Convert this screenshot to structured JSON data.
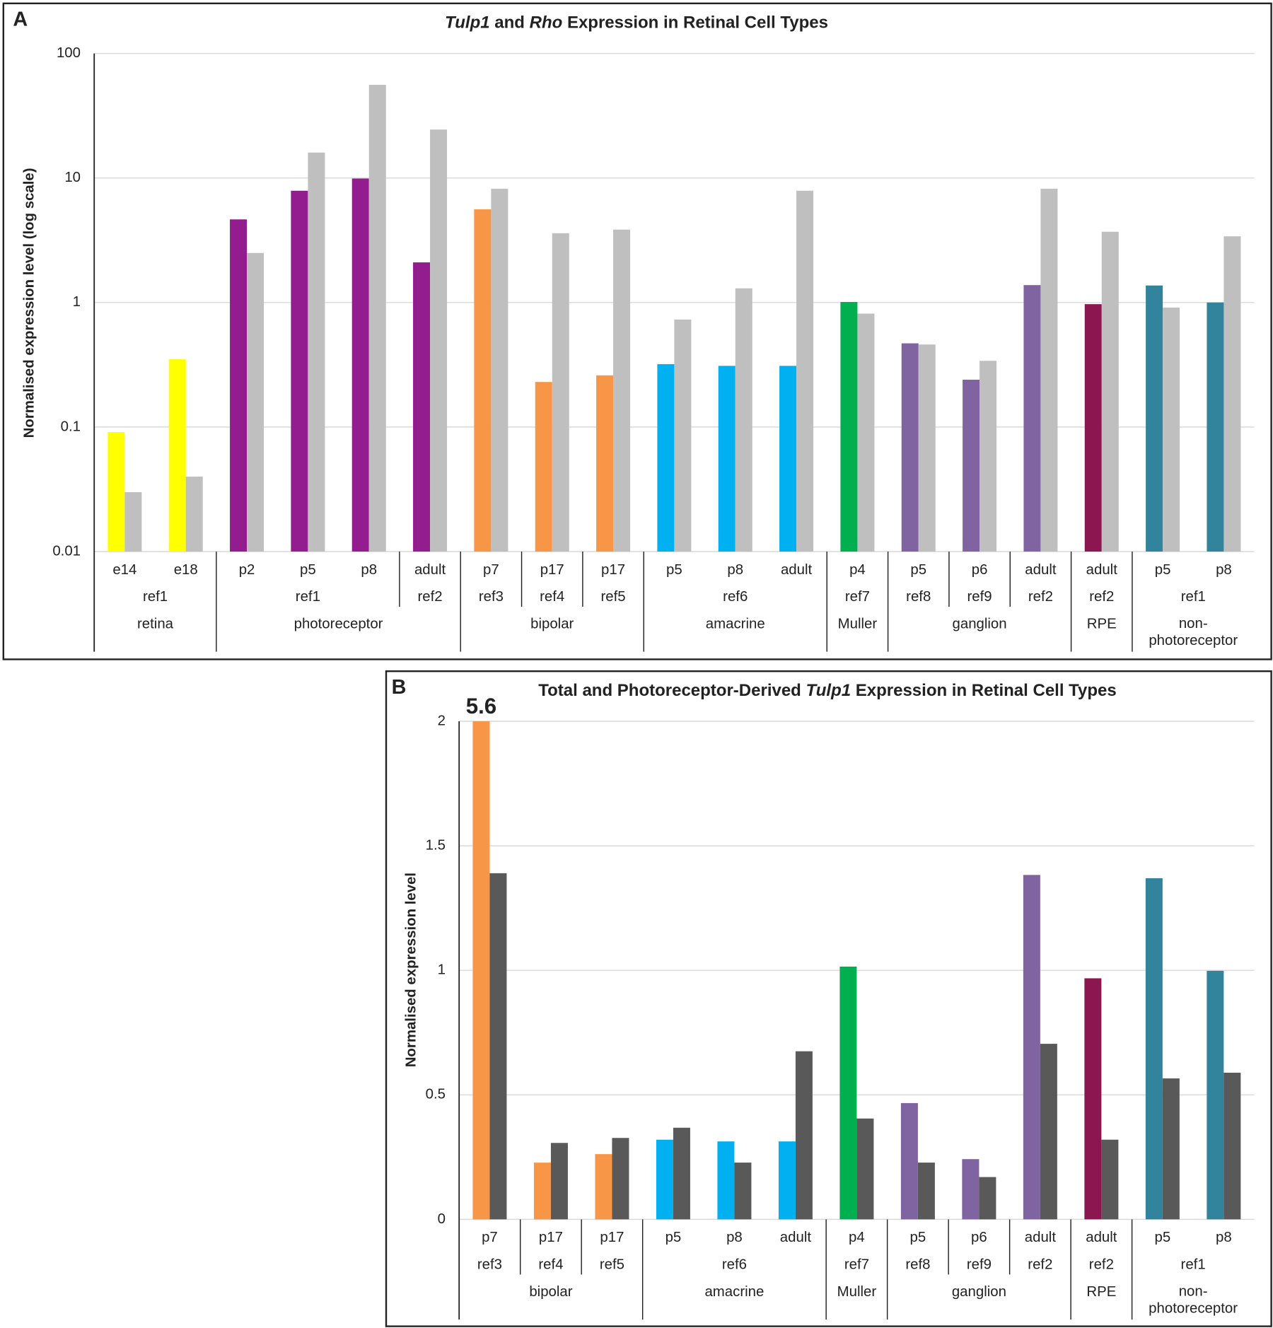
{
  "chart_data": [
    {
      "type": "bar",
      "panel": "A",
      "title_parts": [
        {
          "text": "Tulp1",
          "italic": true
        },
        {
          "text": " and "
        },
        {
          "text": "Rho",
          "italic": true
        },
        {
          "text": " Expression in Retinal Cell Types"
        }
      ],
      "y_label": "Normalised expression level (log scale)",
      "log_scale": true,
      "ylim": [
        0.01,
        100
      ],
      "yticks": [
        0.01,
        0.1,
        1,
        10,
        100
      ],
      "grid": true,
      "groups": [
        {
          "label": "retina",
          "refs": [
            {
              "label": "ref1",
              "categories": [
                "e14",
                "e18"
              ]
            }
          ]
        },
        {
          "label": "photoreceptor",
          "refs": [
            {
              "label": "ref1",
              "categories": [
                "p2",
                "p5",
                "p8"
              ]
            },
            {
              "label": "ref2",
              "categories": [
                "adult"
              ]
            }
          ]
        },
        {
          "label": "bipolar",
          "refs": [
            {
              "label": "ref3",
              "categories": [
                "p7"
              ]
            },
            {
              "label": "ref4",
              "categories": [
                "p17"
              ]
            },
            {
              "label": "ref5",
              "categories": [
                "p17"
              ]
            }
          ]
        },
        {
          "label": "amacrine",
          "refs": [
            {
              "label": "ref6",
              "categories": [
                "p5",
                "p8",
                "adult"
              ]
            }
          ]
        },
        {
          "label": "Muller",
          "refs": [
            {
              "label": "ref7",
              "categories": [
                "p4"
              ]
            }
          ]
        },
        {
          "label": "ganglion",
          "refs": [
            {
              "label": "ref8",
              "categories": [
                "p5"
              ]
            },
            {
              "label": "ref9",
              "categories": [
                "p6"
              ]
            },
            {
              "label": "ref2",
              "categories": [
                "adult"
              ]
            }
          ]
        },
        {
          "label": "RPE",
          "refs": [
            {
              "label": "ref2",
              "categories": [
                "adult"
              ]
            }
          ]
        },
        {
          "label": "non-photoreceptor",
          "refs": [
            {
              "label": "ref1",
              "categories": [
                "p5",
                "p8"
              ]
            }
          ]
        }
      ],
      "series": [
        {
          "colors": [
            "#ffff00",
            "#ffff00",
            "#931c8e",
            "#931c8e",
            "#931c8e",
            "#931c8e",
            "#f79646",
            "#f79646",
            "#f79646",
            "#00b0f0",
            "#00b0f0",
            "#00b0f0",
            "#00b050",
            "#8064a2",
            "#8064a2",
            "#8064a2",
            "#8b1650",
            "#31849b",
            "#31849b"
          ],
          "values": [
            0.091,
            0.35,
            4.65,
            7.9,
            9.9,
            2.1,
            5.6,
            0.23,
            0.26,
            0.32,
            0.31,
            0.31,
            1.01,
            0.47,
            0.24,
            1.38,
            0.97,
            1.37,
            1.0
          ]
        },
        {
          "color": "#bfbfbf",
          "values": [
            0.03,
            0.04,
            2.5,
            16,
            56,
            24.5,
            8.2,
            3.6,
            3.85,
            0.73,
            1.3,
            7.9,
            0.815,
            0.46,
            0.34,
            8.2,
            3.7,
            0.91,
            3.4
          ]
        }
      ]
    },
    {
      "type": "bar",
      "panel": "B",
      "title_parts": [
        {
          "text": "Total and Photoreceptor-Derived "
        },
        {
          "text": "Tulp1",
          "italic": true
        },
        {
          "text": " Expression in Retinal Cell Types"
        }
      ],
      "y_label": "Normalised expression level",
      "log_scale": false,
      "ylim": [
        0,
        2
      ],
      "yticks": [
        0,
        0.5,
        1,
        1.5,
        2
      ],
      "grid": true,
      "groups": [
        {
          "label": "bipolar",
          "refs": [
            {
              "label": "ref3",
              "categories": [
                "p7"
              ]
            },
            {
              "label": "ref4",
              "categories": [
                "p17"
              ]
            },
            {
              "label": "ref5",
              "categories": [
                "p17"
              ]
            }
          ]
        },
        {
          "label": "amacrine",
          "refs": [
            {
              "label": "ref6",
              "categories": [
                "p5",
                "p8",
                "adult"
              ]
            }
          ]
        },
        {
          "label": "Muller",
          "refs": [
            {
              "label": "ref7",
              "categories": [
                "p4"
              ]
            }
          ]
        },
        {
          "label": "ganglion",
          "refs": [
            {
              "label": "ref8",
              "categories": [
                "p5"
              ]
            },
            {
              "label": "ref9",
              "categories": [
                "p6"
              ]
            },
            {
              "label": "ref2",
              "categories": [
                "adult"
              ]
            }
          ]
        },
        {
          "label": "RPE",
          "refs": [
            {
              "label": "ref2",
              "categories": [
                "adult"
              ]
            }
          ]
        },
        {
          "label": "non-photoreceptor",
          "refs": [
            {
              "label": "ref1",
              "categories": [
                "p5",
                "p8"
              ]
            }
          ]
        }
      ],
      "series": [
        {
          "colors": [
            "#f79646",
            "#f79646",
            "#f79646",
            "#00b0f0",
            "#00b0f0",
            "#00b0f0",
            "#00b050",
            "#8064a2",
            "#8064a2",
            "#8064a2",
            "#8b1650",
            "#31849b",
            "#31849b"
          ],
          "values": [
            5.6,
            0.228,
            0.262,
            0.32,
            0.313,
            0.313,
            1.015,
            0.467,
            0.242,
            1.383,
            0.968,
            1.37,
            0.998
          ],
          "value_labels": [
            "5.6",
            null,
            null,
            null,
            null,
            null,
            null,
            null,
            null,
            null,
            null,
            null,
            null
          ]
        },
        {
          "color": "#595959",
          "values": [
            1.39,
            0.307,
            0.327,
            0.368,
            0.228,
            0.675,
            0.405,
            0.228,
            0.17,
            0.705,
            0.32,
            0.566,
            0.589
          ]
        }
      ]
    }
  ]
}
